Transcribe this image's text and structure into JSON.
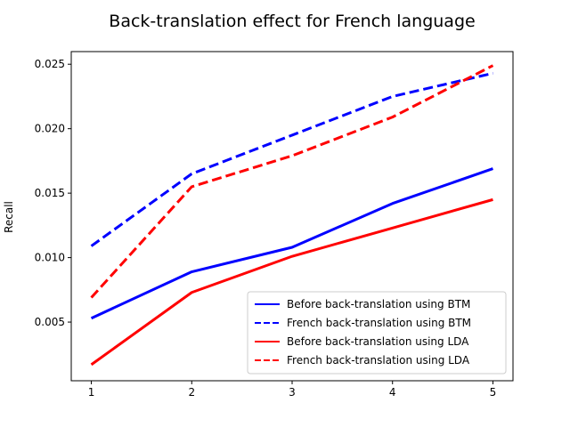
{
  "chart_data": {
    "type": "line",
    "title": "Back-translation effect for French language",
    "xlabel": "",
    "ylabel": "Recall",
    "x": [
      1,
      2,
      3,
      4,
      5
    ],
    "xticks": [
      "1",
      "2",
      "3",
      "4",
      "5"
    ],
    "yticks": [
      "0.005",
      "0.010",
      "0.015",
      "0.020",
      "0.025"
    ],
    "xlim": [
      0.8,
      5.2
    ],
    "ylim": [
      0.00045,
      0.02598
    ],
    "grid": false,
    "legend_position": "lower-right",
    "series": [
      {
        "name": "Before back-translation using BTM",
        "color": "#0000ff",
        "dash": "solid",
        "values": [
          0.0053,
          0.0089,
          0.0108,
          0.0142,
          0.0169
        ]
      },
      {
        "name": "French back-translation using BTM",
        "color": "#0000ff",
        "dash": "dashed",
        "values": [
          0.0109,
          0.0165,
          0.0195,
          0.0225,
          0.0243
        ]
      },
      {
        "name": "Before back-translation using LDA",
        "color": "#ff0000",
        "dash": "solid",
        "values": [
          0.0017,
          0.0073,
          0.0101,
          0.0123,
          0.0145
        ]
      },
      {
        "name": "French back-translation using LDA",
        "color": "#ff0000",
        "dash": "dashed",
        "values": [
          0.0069,
          0.0155,
          0.0179,
          0.0209,
          0.0249
        ]
      }
    ]
  }
}
